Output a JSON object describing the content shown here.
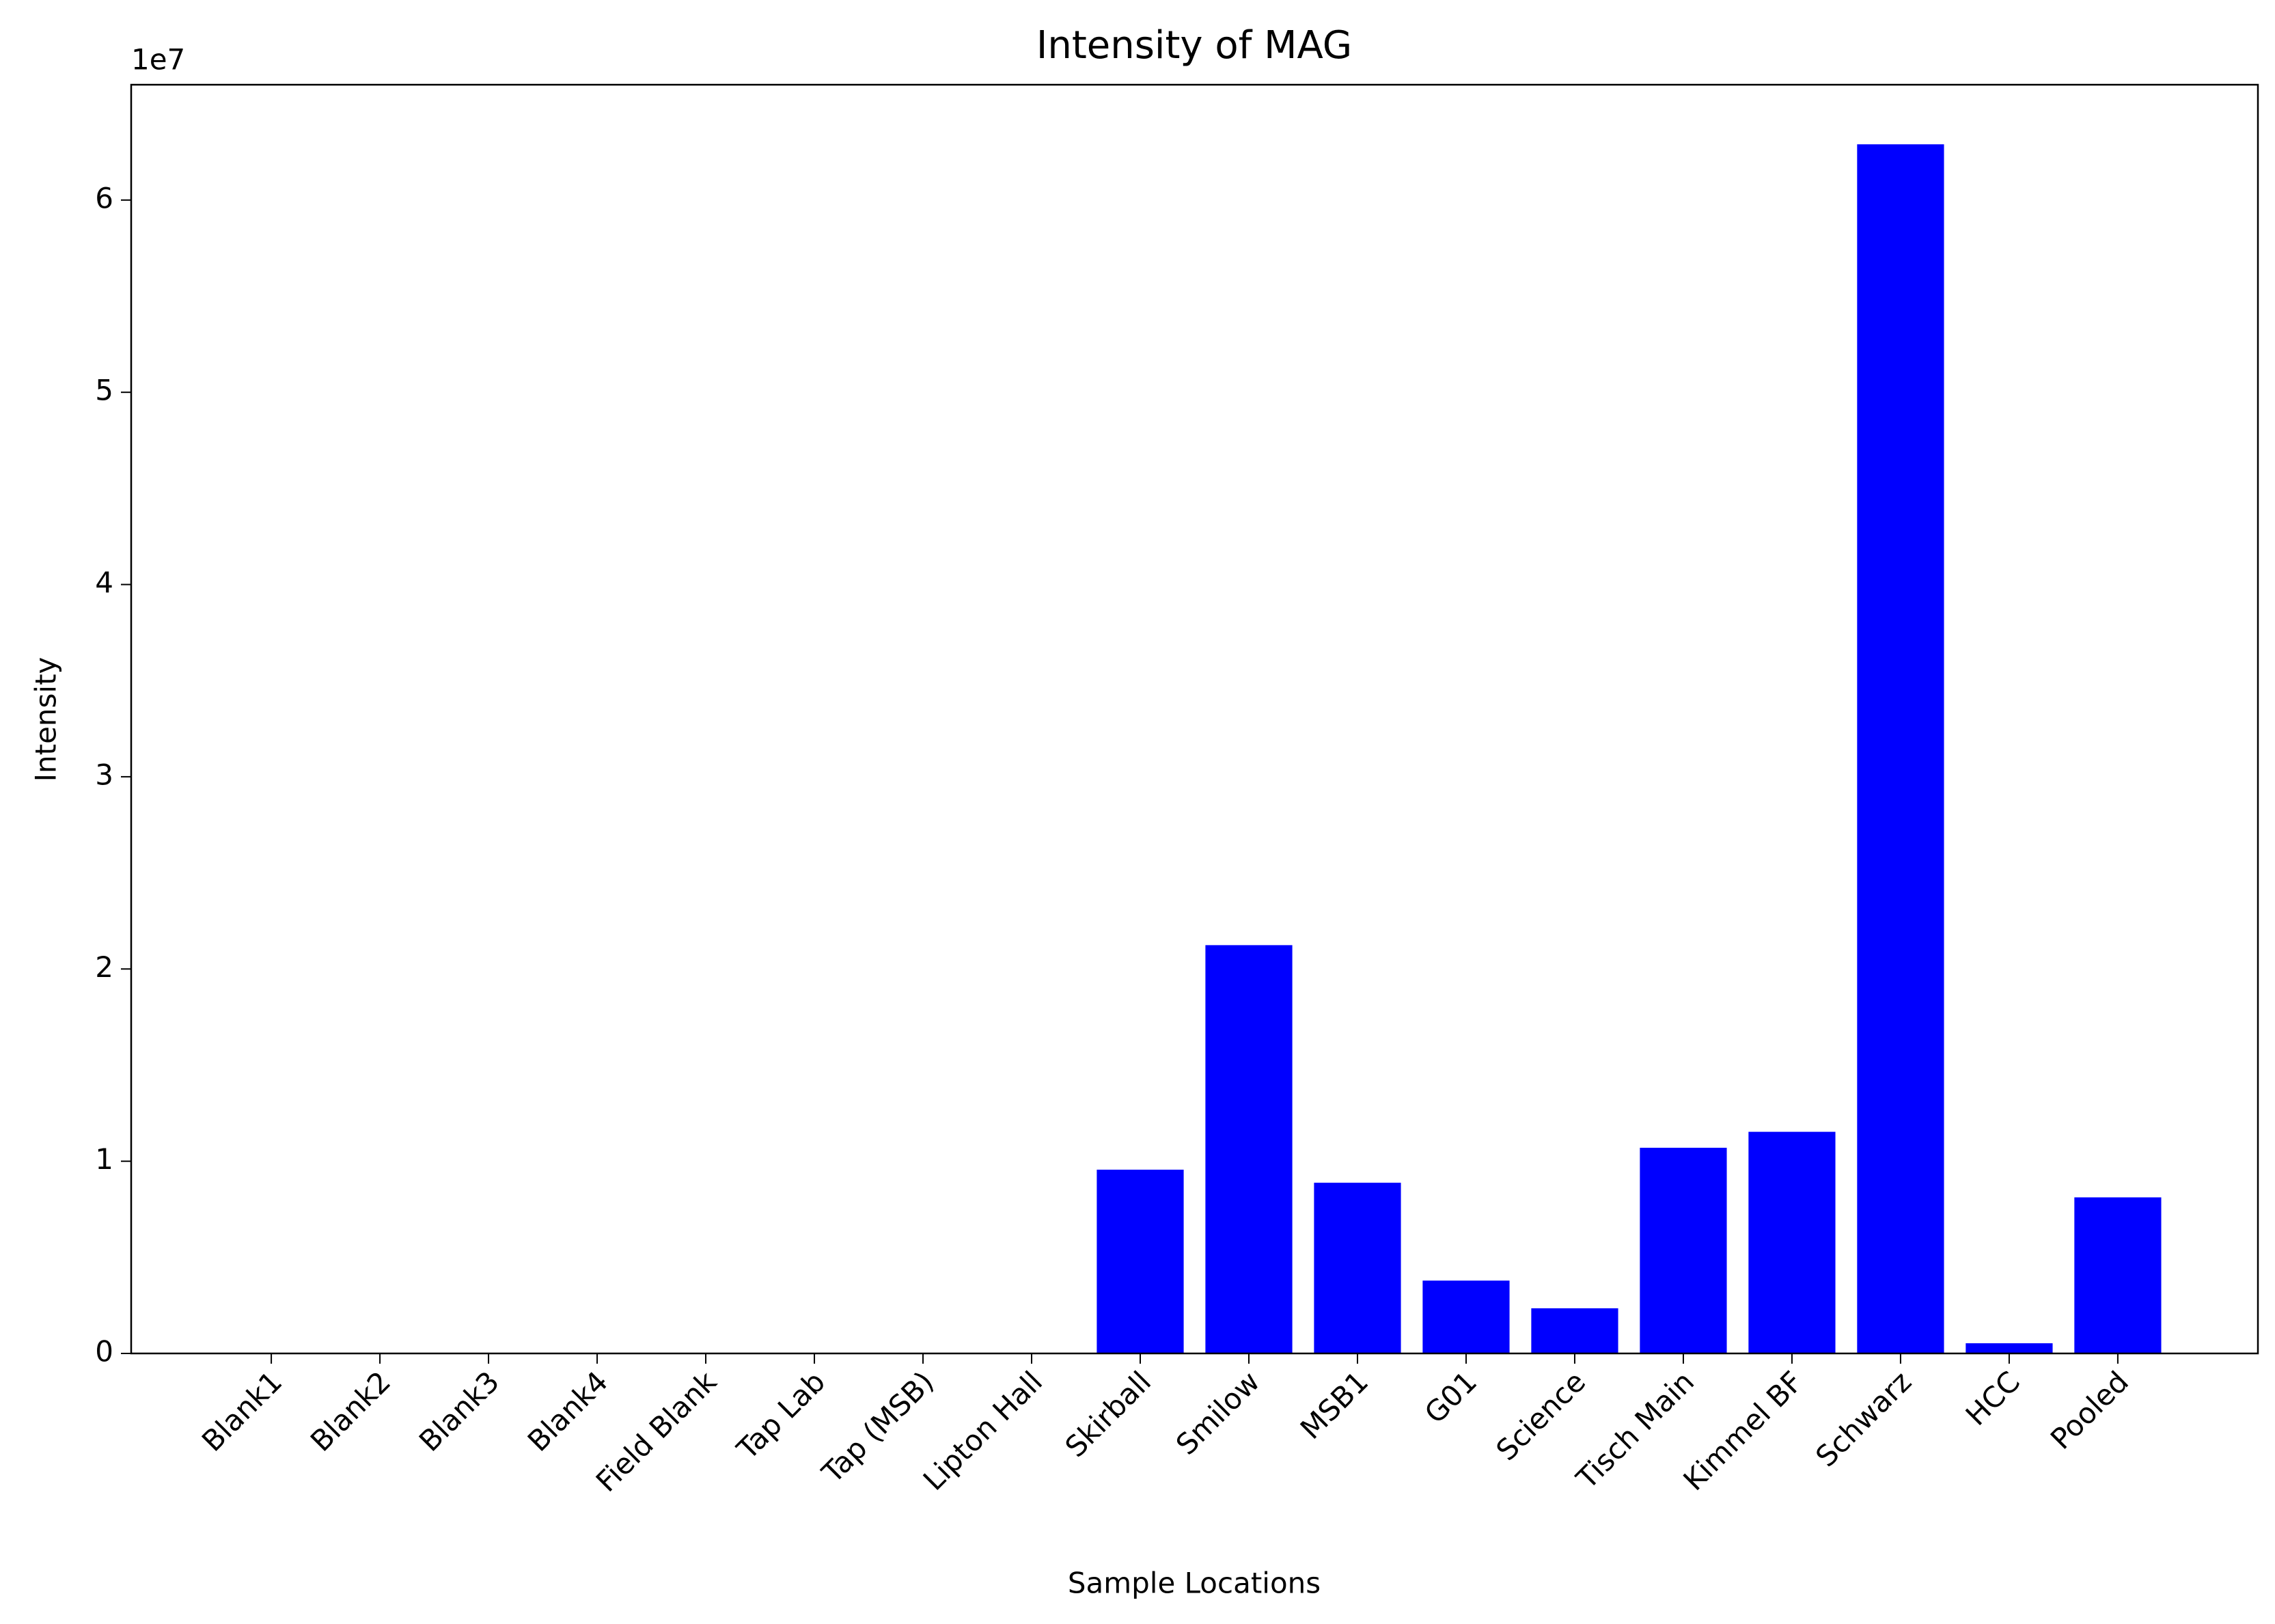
{
  "chart_data": {
    "type": "bar",
    "title": "Intensity of MAG",
    "x_label": "Sample Locations",
    "y_label": "Intensity",
    "y_offset_label": "1e7",
    "categories": [
      "Blank1",
      "Blank2",
      "Blank3",
      "Blank4",
      "Field Blank",
      "Tap Lab",
      "Tap (MSB)",
      "Lipton Hall",
      "Skirball",
      "Smilow",
      "MSB1",
      "G01",
      "Science",
      "Tisch Main",
      "Kimmel BF",
      "Schwarz",
      "HCC",
      "Pooled"
    ],
    "values": [
      0,
      0,
      0,
      0,
      0,
      0,
      0,
      0,
      0.956,
      2.124,
      0.888,
      0.379,
      0.235,
      1.07,
      1.153,
      6.29,
      0.053,
      0.812
    ],
    "color": "#0000ff",
    "ylim": [
      0,
      6.6
    ],
    "yticks": [
      0,
      1,
      2,
      3,
      4,
      5,
      6
    ],
    "grid": false
  }
}
